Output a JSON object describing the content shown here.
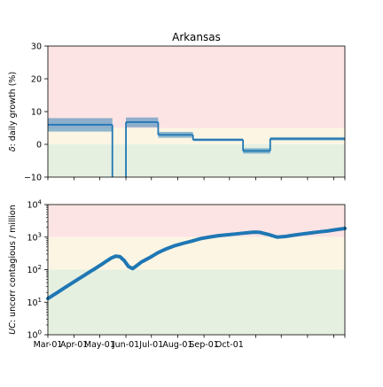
{
  "chart_data": [
    {
      "type": "line",
      "title": "Arkansas",
      "ylabel_math": "δ",
      "ylabel_rest": ": daily growth (%)",
      "ylim": [
        -10,
        30
      ],
      "yticks": [
        -10,
        0,
        10,
        20,
        30
      ],
      "ytick_labels": [
        "−10",
        "0",
        "10",
        "20",
        "30"
      ],
      "bands": [
        {
          "from": 5,
          "to": 30,
          "color": "#fde4e4"
        },
        {
          "from": 0,
          "to": 5,
          "color": "#fdf5e4"
        },
        {
          "from": -10,
          "to": 0,
          "color": "#e5f0e1"
        }
      ],
      "series": [
        {
          "color": "#1f77b4",
          "segments": [
            {
              "x0": 0,
              "x1": 76,
              "y": 6.0,
              "lo": 3.9,
              "hi": 8.0
            },
            {
              "x0": 92,
              "x1": 130,
              "y": 6.8,
              "lo": 5.2,
              "hi": 8.2
            },
            {
              "x0": 130,
              "x1": 171,
              "y": 2.9,
              "lo": 2.0,
              "hi": 3.8
            },
            {
              "x0": 171,
              "x1": 230,
              "y": 1.4,
              "lo": 1.0,
              "hi": 1.8
            },
            {
              "x0": 230,
              "x1": 262,
              "y": -2.0,
              "lo": -2.8,
              "hi": -1.2
            },
            {
              "x0": 262,
              "x1": 350,
              "y": 1.7,
              "lo": 1.2,
              "hi": 2.2
            }
          ],
          "drops": [
            {
              "x": 76,
              "from": 6.0,
              "to": -10
            },
            {
              "x": 92,
              "from": -10,
              "to": 6.8
            }
          ]
        }
      ]
    },
    {
      "type": "line",
      "title": "",
      "ylabel_math": "UC",
      "ylabel_rest": ": uncorr contagious / million",
      "yscale": "log",
      "ylim": [
        1,
        10000
      ],
      "yticks": [
        1,
        10,
        100,
        1000,
        10000
      ],
      "ytick_exponents": [
        "0",
        "1",
        "2",
        "3",
        "4"
      ],
      "xlim": [
        0,
        350
      ],
      "xticks": [
        0,
        31,
        61,
        92,
        122,
        153,
        184,
        214,
        245,
        275,
        306,
        337,
        350
      ],
      "xtick_labels": [
        "Mar-01",
        "Apr-01",
        "May-01",
        "Jun-01",
        "Jul-01",
        "Aug-01",
        "Sep-01",
        "Oct-01"
      ],
      "xtick_label_days": [
        0,
        31,
        61,
        92,
        122,
        153,
        184,
        214
      ],
      "bands": [
        {
          "from": 1000,
          "to": 10000,
          "color": "#fde4e4"
        },
        {
          "from": 100,
          "to": 1000,
          "color": "#fdf5e4"
        },
        {
          "from": 1,
          "to": 100,
          "color": "#e5f0e1"
        }
      ],
      "series": [
        {
          "color": "#1f77b4",
          "x": [
            0,
            10,
            20,
            30,
            40,
            50,
            55,
            60,
            65,
            70,
            75,
            80,
            85,
            90,
            95,
            100,
            105,
            110,
            115,
            120,
            125,
            130,
            140,
            150,
            160,
            170,
            180,
            190,
            200,
            210,
            220,
            230,
            240,
            245,
            250,
            260,
            270,
            280,
            290,
            300,
            310,
            320,
            330,
            340,
            350
          ],
          "y": [
            13,
            19,
            28,
            41,
            60,
            88,
            105,
            128,
            155,
            190,
            230,
            260,
            250,
            190,
            125,
            108,
            135,
            170,
            200,
            235,
            280,
            335,
            440,
            550,
            650,
            760,
            900,
            1000,
            1100,
            1170,
            1240,
            1320,
            1400,
            1420,
            1400,
            1200,
            1000,
            1050,
            1150,
            1250,
            1350,
            1450,
            1550,
            1700,
            1850
          ]
        }
      ]
    }
  ]
}
